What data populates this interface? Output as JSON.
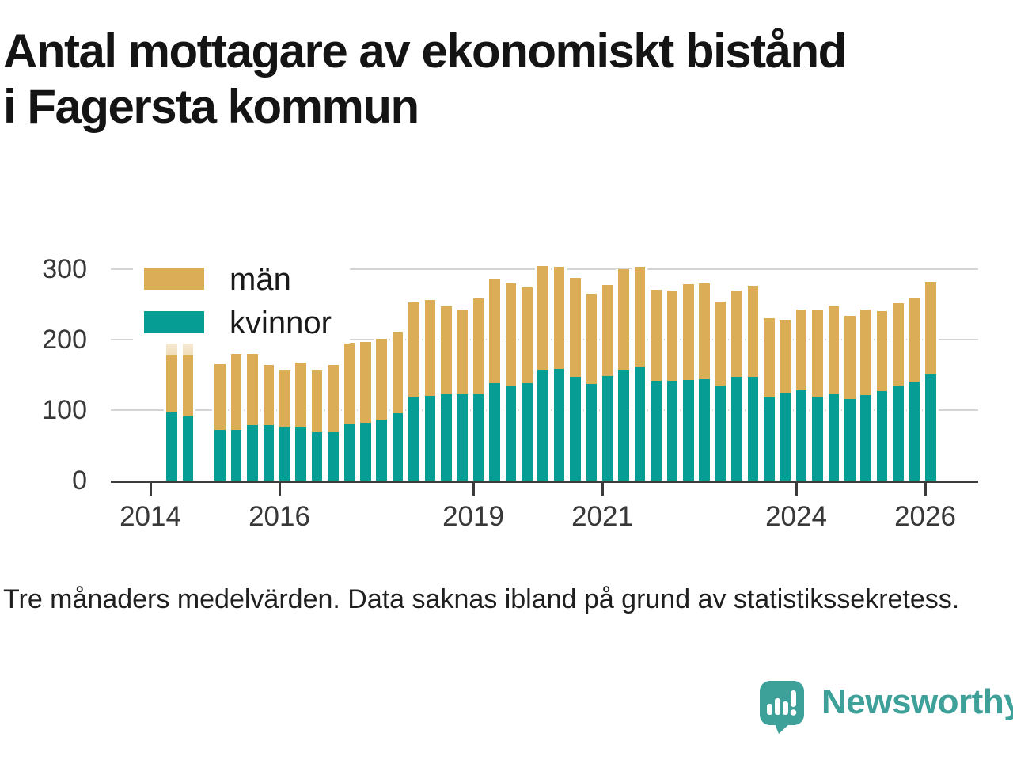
{
  "header": {
    "title_line1": "Antal mottagare av ekonomiskt bistånd",
    "title_line2": "i Fagersta kommun"
  },
  "footnote": "Tre månaders medelvärden. Data saknas ibland på grund av statistikssekretess.",
  "branding": {
    "name": "Newsworthy",
    "color": "#3da099"
  },
  "colors": {
    "men": "#dcad57",
    "women": "#069d94",
    "men_uncertain_fade": "rgba(220,173,87,0.35)",
    "gridline": "#d4d4d4",
    "axis": "#3c3c3c",
    "text": "#383838"
  },
  "chart_data": {
    "type": "bar",
    "stacked": true,
    "title": "Antal mottagare av ekonomiskt bistånd i Fagersta kommun",
    "ylabel": "",
    "xlabel": "",
    "ylim": [
      0,
      300
    ],
    "yticks": [
      "0",
      "100",
      "200",
      "300"
    ],
    "xticks": [
      "2014",
      "2016",
      "2019",
      "2021",
      "2024",
      "2026"
    ],
    "grid": "horizontal",
    "legend_position": "top-left",
    "legend": [
      {
        "label": "män",
        "color": "#dcad57"
      },
      {
        "label": "kvinnor",
        "color": "#069d94"
      }
    ],
    "note": "Faded bar tops 2014 = uncertain/partially censored men values; 2014 Q4 missing",
    "bars": [
      {
        "q": "2014 Q2",
        "kvinnor": 97,
        "man": 81,
        "osaker": 24
      },
      {
        "q": "2014 Q3",
        "kvinnor": 91,
        "man": 86,
        "osaker": 22
      },
      {
        "q": "2014 Q4",
        "missing": true
      },
      {
        "q": "2015 Q1",
        "kvinnor": 72,
        "man": 93
      },
      {
        "q": "2015 Q2",
        "kvinnor": 72,
        "man": 108
      },
      {
        "q": "2015 Q3",
        "kvinnor": 79,
        "man": 101
      },
      {
        "q": "2015 Q4",
        "kvinnor": 79,
        "man": 85
      },
      {
        "q": "2016 Q1",
        "kvinnor": 76,
        "man": 81
      },
      {
        "q": "2016 Q2",
        "kvinnor": 76,
        "man": 91
      },
      {
        "q": "2016 Q3",
        "kvinnor": 68,
        "man": 89
      },
      {
        "q": "2016 Q4",
        "kvinnor": 69,
        "man": 95
      },
      {
        "q": "2017 Q1",
        "kvinnor": 80,
        "man": 115
      },
      {
        "q": "2017 Q2",
        "kvinnor": 82,
        "man": 115
      },
      {
        "q": "2017 Q3",
        "kvinnor": 87,
        "man": 114
      },
      {
        "q": "2017 Q4",
        "kvinnor": 96,
        "man": 115
      },
      {
        "q": "2018 Q1",
        "kvinnor": 119,
        "man": 134
      },
      {
        "q": "2018 Q2",
        "kvinnor": 120,
        "man": 136
      },
      {
        "q": "2018 Q3",
        "kvinnor": 122,
        "man": 125
      },
      {
        "q": "2018 Q4",
        "kvinnor": 122,
        "man": 121
      },
      {
        "q": "2019 Q1",
        "kvinnor": 122,
        "man": 136
      },
      {
        "q": "2019 Q2",
        "kvinnor": 138,
        "man": 148
      },
      {
        "q": "2019 Q3",
        "kvinnor": 134,
        "man": 146
      },
      {
        "q": "2019 Q4",
        "kvinnor": 138,
        "man": 136
      },
      {
        "q": "2020 Q1",
        "kvinnor": 157,
        "man": 148
      },
      {
        "q": "2020 Q2",
        "kvinnor": 158,
        "man": 145
      },
      {
        "q": "2020 Q3",
        "kvinnor": 147,
        "man": 141
      },
      {
        "q": "2020 Q4",
        "kvinnor": 137,
        "man": 128
      },
      {
        "q": "2021 Q1",
        "kvinnor": 148,
        "man": 130
      },
      {
        "q": "2021 Q2",
        "kvinnor": 157,
        "man": 143
      },
      {
        "q": "2021 Q3",
        "kvinnor": 162,
        "man": 141
      },
      {
        "q": "2021 Q4",
        "kvinnor": 142,
        "man": 129
      },
      {
        "q": "2022 Q1",
        "kvinnor": 142,
        "man": 128
      },
      {
        "q": "2022 Q2",
        "kvinnor": 143,
        "man": 136
      },
      {
        "q": "2022 Q3",
        "kvinnor": 144,
        "man": 136
      },
      {
        "q": "2022 Q4",
        "kvinnor": 135,
        "man": 119
      },
      {
        "q": "2023 Q1",
        "kvinnor": 147,
        "man": 123
      },
      {
        "q": "2023 Q2",
        "kvinnor": 147,
        "man": 129
      },
      {
        "q": "2023 Q3",
        "kvinnor": 118,
        "man": 112
      },
      {
        "q": "2023 Q4",
        "kvinnor": 125,
        "man": 103
      },
      {
        "q": "2024 Q1",
        "kvinnor": 128,
        "man": 115
      },
      {
        "q": "2024 Q2",
        "kvinnor": 119,
        "man": 123
      },
      {
        "q": "2024 Q3",
        "kvinnor": 123,
        "man": 124
      },
      {
        "q": "2024 Q4",
        "kvinnor": 116,
        "man": 118
      },
      {
        "q": "2025 Q1",
        "kvinnor": 121,
        "man": 122
      },
      {
        "q": "2025 Q2",
        "kvinnor": 127,
        "man": 114
      },
      {
        "q": "2025 Q3",
        "kvinnor": 135,
        "man": 117
      },
      {
        "q": "2025 Q4",
        "kvinnor": 141,
        "man": 119
      },
      {
        "q": "2026 Q1",
        "kvinnor": 151,
        "man": 131
      }
    ],
    "x_tick_years_positions": {
      "2014": 190,
      "2016": 353,
      "2019": 598,
      "2021": 761,
      "2024": 1006,
      "2026": 1169
    }
  }
}
